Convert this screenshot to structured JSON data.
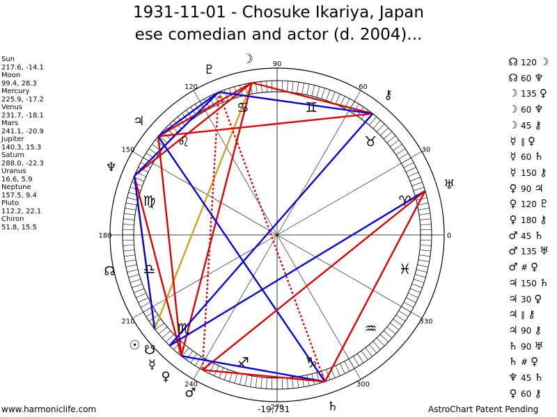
{
  "title_line1": "1931-11-01 - Chosuke Ikariya, Japan",
  "title_line2": "ese comedian and actor (d. 2004)...",
  "planets": [
    {
      "name": "Sun",
      "coords": "217.6, -14.1",
      "lon": 217.6,
      "glyph": "☉"
    },
    {
      "name": "Moon",
      "coords": "99.4, 28.3",
      "lon": 99.4,
      "glyph": "☽"
    },
    {
      "name": "Mercury",
      "coords": "225.9, -17.2",
      "lon": 225.9,
      "glyph": "☿"
    },
    {
      "name": "Venus",
      "coords": "231.7, -18.1",
      "lon": 231.7,
      "glyph": "♀"
    },
    {
      "name": "Mars",
      "coords": "241.1, -20.9",
      "lon": 241.1,
      "glyph": "♂"
    },
    {
      "name": "Jupiter",
      "coords": "140.3, 15.3",
      "lon": 140.3,
      "glyph": "♃"
    },
    {
      "name": "Saturn",
      "coords": "288.0, -22.3",
      "lon": 288.0,
      "glyph": "♄"
    },
    {
      "name": "Uranus",
      "coords": "16.6, 5.9",
      "lon": 16.6,
      "glyph": "♅"
    },
    {
      "name": "Neptune",
      "coords": "157.5, 9.4",
      "lon": 157.5,
      "glyph": "♆"
    },
    {
      "name": "Pluto",
      "coords": "112.2, 22.1",
      "lon": 112.2,
      "glyph": "♇"
    },
    {
      "name": "Chiron",
      "coords": "51.8, 15.5",
      "lon": 51.8,
      "glyph": "⚷"
    }
  ],
  "node_glyphs": [
    {
      "glyph": "☊",
      "lon": 192
    },
    {
      "glyph": "☋",
      "lon": 222
    }
  ],
  "sign_glyphs": [
    {
      "glyph": "♈",
      "lon": 15
    },
    {
      "glyph": "♉",
      "lon": 45
    },
    {
      "glyph": "♊",
      "lon": 75
    },
    {
      "glyph": "♋",
      "lon": 105
    },
    {
      "glyph": "♌",
      "lon": 135
    },
    {
      "glyph": "♍",
      "lon": 165
    },
    {
      "glyph": "♎",
      "lon": 195
    },
    {
      "glyph": "♏",
      "lon": 225
    },
    {
      "glyph": "♐",
      "lon": 255
    },
    {
      "glyph": "♑",
      "lon": 285
    },
    {
      "glyph": "♒",
      "lon": 315
    },
    {
      "glyph": "♓",
      "lon": 345
    }
  ],
  "degree_labels": [
    "0",
    "30",
    "60",
    "90",
    "120",
    "150",
    "180",
    "210",
    "240",
    "270",
    "300",
    "330"
  ],
  "aspects": [
    {
      "p1": "☊",
      "angle": "120",
      "p2": "☽"
    },
    {
      "p1": "☊",
      "angle": "60",
      "p2": "♆"
    },
    {
      "p1": "☽",
      "angle": "135",
      "p2": "♀"
    },
    {
      "p1": "☽",
      "angle": "60",
      "p2": "♆"
    },
    {
      "p1": "☽",
      "angle": "45",
      "p2": "⚷"
    },
    {
      "p1": "☿",
      "angle": "∥",
      "p2": "♀"
    },
    {
      "p1": "☿",
      "angle": "60",
      "p2": "♄"
    },
    {
      "p1": "☿",
      "angle": "150",
      "p2": "⚷"
    },
    {
      "p1": "♀",
      "angle": "90",
      "p2": "♃"
    },
    {
      "p1": "♀",
      "angle": "120",
      "p2": "♇"
    },
    {
      "p1": "♀",
      "angle": "180",
      "p2": "⚷"
    },
    {
      "p1": "♂",
      "angle": "45",
      "p2": "♄"
    },
    {
      "p1": "♂",
      "angle": "135",
      "p2": "♅"
    },
    {
      "p1": "♂",
      "angle": "#",
      "p2": "♀"
    },
    {
      "p1": "♃",
      "angle": "150",
      "p2": "♄"
    },
    {
      "p1": "♃",
      "angle": "30",
      "p2": "♀"
    },
    {
      "p1": "♃",
      "angle": "∥",
      "p2": "⚷"
    },
    {
      "p1": "♃",
      "angle": "90",
      "p2": "⚷"
    },
    {
      "p1": "♄",
      "angle": "90",
      "p2": "♅"
    },
    {
      "p1": "♄",
      "angle": "#",
      "p2": "♀"
    },
    {
      "p1": "♆",
      "angle": "45",
      "p2": "♄"
    },
    {
      "p1": "♀",
      "angle": "60",
      "p2": "⚷"
    }
  ],
  "aspect_lines": [
    {
      "a": 99.4,
      "b": 157.5,
      "color": "#e00000",
      "style": "solid"
    },
    {
      "a": 99.4,
      "b": 51.8,
      "color": "#e00000",
      "style": "solid"
    },
    {
      "a": 99.4,
      "b": 140.3,
      "color": "#e00000",
      "style": "solid"
    },
    {
      "a": 99.4,
      "b": 217.6,
      "color": "#d4a020",
      "style": "solid"
    },
    {
      "a": 99.4,
      "b": 231.7,
      "color": "#e00000",
      "style": "solid"
    },
    {
      "a": 112.2,
      "b": 51.8,
      "color": "#0000e0",
      "style": "solid"
    },
    {
      "a": 112.2,
      "b": 157.5,
      "color": "#0000e0",
      "style": "solid"
    },
    {
      "a": 112.2,
      "b": 140.3,
      "color": "#0000e0",
      "style": "solid"
    },
    {
      "a": 112.2,
      "b": 241.1,
      "color": "#e00000",
      "style": "dotted"
    },
    {
      "a": 112.2,
      "b": 288.0,
      "color": "#e00000",
      "style": "dotted"
    },
    {
      "a": 140.3,
      "b": 51.8,
      "color": "#e00000",
      "style": "solid"
    },
    {
      "a": 140.3,
      "b": 231.7,
      "color": "#e00000",
      "style": "solid"
    },
    {
      "a": 140.3,
      "b": 288.0,
      "color": "#0000e0",
      "style": "solid"
    },
    {
      "a": 157.5,
      "b": 231.7,
      "color": "#e00000",
      "style": "solid"
    },
    {
      "a": 157.5,
      "b": 217.6,
      "color": "#d4a020",
      "style": "solid"
    },
    {
      "a": 16.6,
      "b": 225.9,
      "color": "#0000e0",
      "style": "solid"
    },
    {
      "a": 16.6,
      "b": 241.1,
      "color": "#e00000",
      "style": "solid"
    },
    {
      "a": 16.6,
      "b": 288.0,
      "color": "#e00000",
      "style": "solid"
    },
    {
      "a": 51.8,
      "b": 225.9,
      "color": "#0000e0",
      "style": "solid"
    },
    {
      "a": 231.7,
      "b": 288.0,
      "color": "#0000e0",
      "style": "solid"
    },
    {
      "a": 217.6,
      "b": 157.5,
      "color": "#0000e0",
      "style": "solid"
    },
    {
      "a": 241.1,
      "b": 288.0,
      "color": "#e00000",
      "style": "solid"
    }
  ],
  "footer": {
    "left": "www.harmoniclife.com",
    "center": "-19,731",
    "right": "AstroChart Patent Pending"
  },
  "colors": {
    "red": "#e00000",
    "blue": "#0000e0",
    "gold": "#d4a020"
  }
}
